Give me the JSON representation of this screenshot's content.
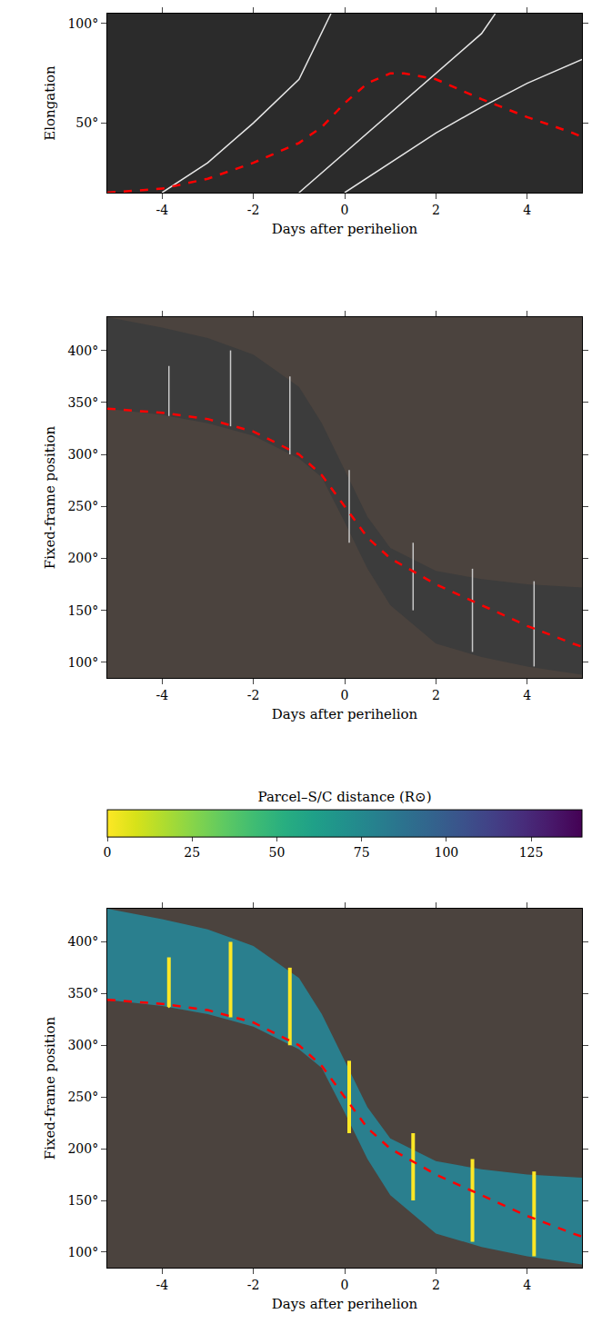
{
  "chart_data": [
    {
      "type": "line",
      "x_label": "Days after perihelion",
      "y_label": "Elongation",
      "xlim": [
        -5.2,
        5.2
      ],
      "xticks": [
        -4,
        -2,
        0,
        2,
        4
      ],
      "ylim": [
        15,
        105
      ],
      "yticks": [
        {
          "value": 50,
          "label": "50°"
        },
        {
          "value": 100,
          "label": "100°"
        }
      ],
      "color": "#2b2b2b",
      "series": [
        {
          "type": "line",
          "color": "#e6e6e6",
          "line_style": "solid",
          "x": [
            -4,
            -3,
            -2,
            -1,
            -0.3
          ],
          "values": [
            15,
            30,
            50,
            72,
            105
          ]
        },
        {
          "type": "line",
          "color": "#e6e6e6",
          "line_style": "solid",
          "x": [
            -1,
            0,
            1,
            2,
            3,
            3.3
          ],
          "values": [
            15,
            35,
            55,
            75,
            95,
            105
          ]
        },
        {
          "type": "line",
          "color": "#e6e6e6",
          "line_style": "solid",
          "x": [
            0,
            1,
            2,
            3,
            4,
            5.2
          ],
          "values": [
            15,
            30,
            45,
            58,
            70,
            82
          ]
        },
        {
          "type": "line",
          "color": "#ff0000",
          "line_style": "dashed",
          "x": [
            -5.2,
            -4,
            -3,
            -2,
            -1,
            -0.5,
            0,
            0.5,
            1,
            1.3,
            2,
            3,
            4,
            5,
            5.2
          ],
          "values": [
            15,
            17,
            22,
            30,
            40,
            48,
            60,
            70,
            75,
            75,
            72,
            62,
            53,
            45,
            43
          ]
        }
      ]
    },
    {
      "type": "line",
      "x_label": "Days after perihelion",
      "y_label": "Fixed-frame position",
      "xlim": [
        -5.2,
        5.2
      ],
      "xticks": [
        -4,
        -2,
        0,
        2,
        4
      ],
      "ylim": [
        85,
        432
      ],
      "yticks": [
        {
          "value": 100,
          "label": "100°"
        },
        {
          "value": 150,
          "label": "150°"
        },
        {
          "value": 200,
          "label": "200°"
        },
        {
          "value": 250,
          "label": "250°"
        },
        {
          "value": 300,
          "label": "300°"
        },
        {
          "value": 350,
          "label": "350°"
        },
        {
          "value": 400,
          "label": "400°"
        }
      ],
      "color": "#4b433e",
      "series": [
        {
          "type": "band",
          "color": "#3c3c3c",
          "x": [
            -5.2,
            -4,
            -3,
            -2,
            -1,
            -0.5,
            0,
            0.5,
            1,
            2,
            3,
            4,
            5.2
          ],
          "lower": [
            344,
            338,
            330,
            318,
            296,
            278,
            235,
            190,
            155,
            118,
            105,
            96,
            88
          ],
          "upper": [
            432,
            422,
            412,
            396,
            365,
            330,
            285,
            240,
            210,
            188,
            180,
            175,
            172
          ]
        },
        {
          "type": "spikes",
          "color": "#c8c8c8",
          "x": [
            -3.85,
            -2.5,
            -1.2,
            0.1,
            1.5,
            2.8,
            4.15
          ],
          "y0": [
            337,
            327,
            300,
            215,
            150,
            110,
            96
          ],
          "y1": [
            385,
            400,
            375,
            285,
            215,
            190,
            178
          ]
        },
        {
          "type": "line",
          "color": "#ff0000",
          "line_style": "dashed",
          "x": [
            -5.2,
            -4,
            -3,
            -2,
            -1,
            -0.5,
            0,
            0.5,
            1,
            2,
            3,
            4,
            5,
            5.2
          ],
          "values": [
            344,
            340,
            334,
            322,
            300,
            280,
            250,
            220,
            200,
            175,
            155,
            135,
            118,
            115
          ]
        }
      ]
    },
    {
      "type": "line",
      "x_label": "Days after perihelion",
      "y_label": "Fixed-frame position",
      "xlim": [
        -5.2,
        5.2
      ],
      "xticks": [
        -4,
        -2,
        0,
        2,
        4
      ],
      "ylim": [
        85,
        432
      ],
      "yticks": [
        {
          "value": 100,
          "label": "100°"
        },
        {
          "value": 150,
          "label": "150°"
        },
        {
          "value": 200,
          "label": "200°"
        },
        {
          "value": 250,
          "label": "250°"
        },
        {
          "value": 300,
          "label": "300°"
        },
        {
          "value": 350,
          "label": "350°"
        },
        {
          "value": 400,
          "label": "400°"
        }
      ],
      "color": "#4b433e",
      "colorbar": {
        "label": "Parcel–S/C distance (R⊙)",
        "range": [
          0,
          140
        ],
        "ticks": [
          0,
          25,
          50,
          75,
          100,
          125
        ]
      },
      "series": [
        {
          "type": "band",
          "color": "#2a7f8e",
          "x": [
            -5.2,
            -4,
            -3,
            -2,
            -1,
            -0.5,
            0,
            0.5,
            1,
            2,
            3,
            4,
            5.2
          ],
          "lower": [
            344,
            338,
            330,
            318,
            296,
            278,
            235,
            190,
            155,
            118,
            105,
            96,
            88
          ],
          "upper": [
            432,
            422,
            412,
            396,
            365,
            330,
            285,
            240,
            210,
            188,
            180,
            175,
            172
          ]
        },
        {
          "type": "spikes",
          "color": "#fde725",
          "distance": 0,
          "x": [
            -3.85,
            -2.5,
            -1.2,
            0.1,
            1.5,
            2.8,
            4.15
          ],
          "y0": [
            337,
            327,
            300,
            215,
            150,
            110,
            96
          ],
          "y1": [
            385,
            400,
            375,
            285,
            215,
            190,
            178
          ]
        },
        {
          "type": "line",
          "color": "#ff0000",
          "line_style": "dashed",
          "x": [
            -5.2,
            -4,
            -3,
            -2,
            -1,
            -0.5,
            0,
            0.5,
            1,
            2,
            3,
            4,
            5,
            5.2
          ],
          "values": [
            344,
            340,
            334,
            322,
            300,
            280,
            250,
            220,
            200,
            175,
            155,
            135,
            118,
            115
          ]
        }
      ]
    }
  ]
}
